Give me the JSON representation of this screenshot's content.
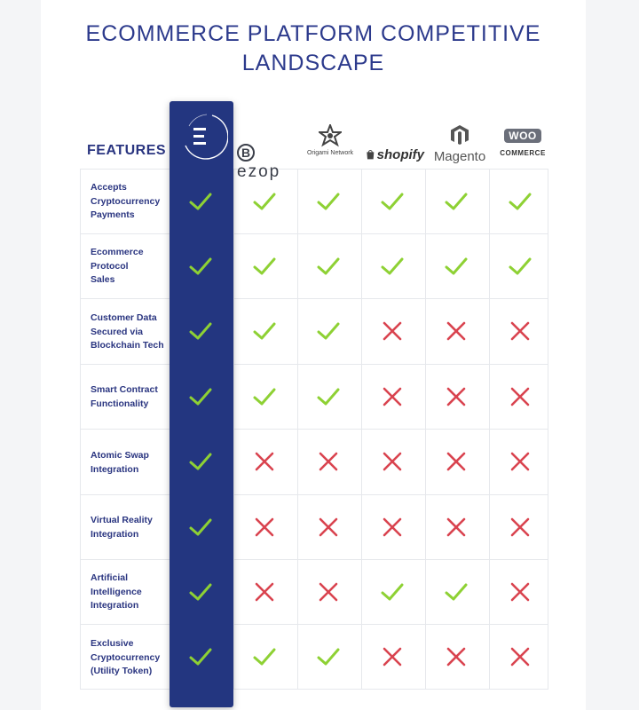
{
  "title": {
    "line1": "ECOMMERCE PLATFORM COMPETITIVE",
    "line2": "LANDSCAPE"
  },
  "features_header": "FEATURES",
  "platforms": [
    {
      "id": "e",
      "icon": "e-brand-logo-icon",
      "label": ""
    },
    {
      "id": "bezop",
      "icon": "bezop-logo-icon",
      "label": "ezop",
      "initial": "B"
    },
    {
      "id": "origami",
      "icon": "origami-star-icon",
      "label": "Origami Network"
    },
    {
      "id": "shopify",
      "icon": "shopify-bag-icon",
      "label": "shopify"
    },
    {
      "id": "magento",
      "icon": "magento-logo-icon",
      "label": "Magento"
    },
    {
      "id": "woocommerce",
      "icon": "woo-badge-icon",
      "badge": "WOO",
      "label": "COMMERCE"
    }
  ],
  "rows": [
    {
      "lines": [
        "Accepts",
        "Cryptocurrency",
        "Payments"
      ],
      "values": [
        true,
        true,
        true,
        true,
        true,
        true
      ]
    },
    {
      "lines": [
        "Ecommerce",
        "Protocol",
        "Sales"
      ],
      "values": [
        true,
        true,
        true,
        true,
        true,
        true
      ]
    },
    {
      "lines": [
        "Customer Data",
        "Secured via",
        "Blockchain Tech"
      ],
      "values": [
        true,
        true,
        true,
        false,
        false,
        false
      ]
    },
    {
      "lines": [
        "Smart Contract",
        "Functionality"
      ],
      "values": [
        true,
        true,
        true,
        false,
        false,
        false
      ]
    },
    {
      "lines": [
        "Atomic Swap",
        "Integration"
      ],
      "values": [
        true,
        false,
        false,
        false,
        false,
        false
      ]
    },
    {
      "lines": [
        "Virtual Reality",
        "Integration"
      ],
      "values": [
        true,
        false,
        false,
        false,
        false,
        false
      ]
    },
    {
      "lines": [
        "Artificial",
        "Intelligence",
        "Integration"
      ],
      "values": [
        true,
        false,
        false,
        true,
        true,
        false
      ]
    },
    {
      "lines": [
        "Exclusive",
        "Cryptocurrency",
        "(Utility Token)"
      ],
      "values": [
        true,
        true,
        true,
        false,
        false,
        false
      ]
    }
  ],
  "colors": {
    "navy": "#233680",
    "check": "#8ed134",
    "cross": "#d9434f",
    "text": "#2a3580"
  }
}
